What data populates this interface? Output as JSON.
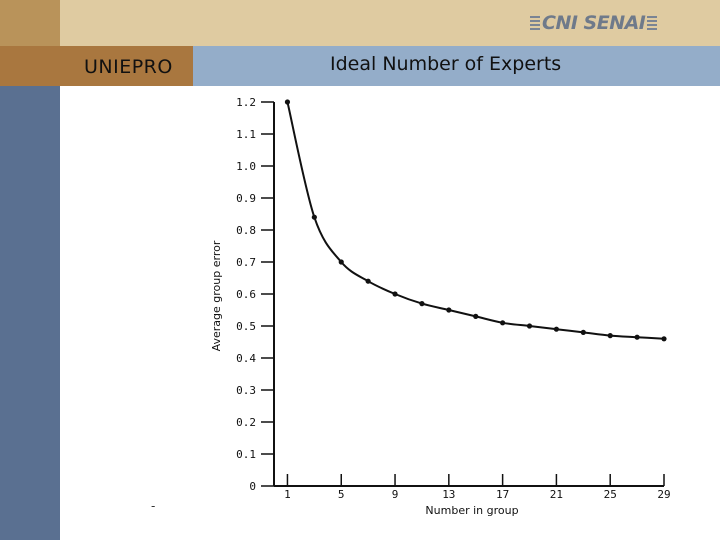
{
  "header": {
    "brand": "UNIEPRO",
    "title": "Ideal Number of Experts",
    "logo": "CNI SENAI"
  },
  "footer_mark": "-",
  "colors": {
    "top_band": "#dfcba1",
    "brand_band": "#a9773f",
    "title_band": "#94adc9",
    "left_strip": "#5a7091"
  },
  "chart_data": {
    "type": "line",
    "title": "",
    "xlabel": "Number in group",
    "ylabel": "Average group error",
    "x_ticks": [
      "1",
      "5",
      "9",
      "13",
      "17",
      "21",
      "25",
      "29"
    ],
    "y_ticks": [
      "0",
      "0.1",
      "0.2",
      "0.3",
      "0.4",
      "0.5",
      "0.6",
      "0.7",
      "0.8",
      "0.9",
      "1.0",
      "1.1",
      "1.2"
    ],
    "xlim": [
      0,
      29
    ],
    "ylim": [
      0,
      1.2
    ],
    "grid": false,
    "series": [
      {
        "x": [
          1,
          3,
          5,
          7,
          9,
          11,
          13,
          15,
          17,
          19,
          21,
          23,
          25,
          27,
          29
        ],
        "y": [
          1.2,
          0.84,
          0.7,
          0.64,
          0.6,
          0.57,
          0.55,
          0.53,
          0.51,
          0.5,
          0.49,
          0.48,
          0.47,
          0.465,
          0.46
        ]
      }
    ]
  }
}
